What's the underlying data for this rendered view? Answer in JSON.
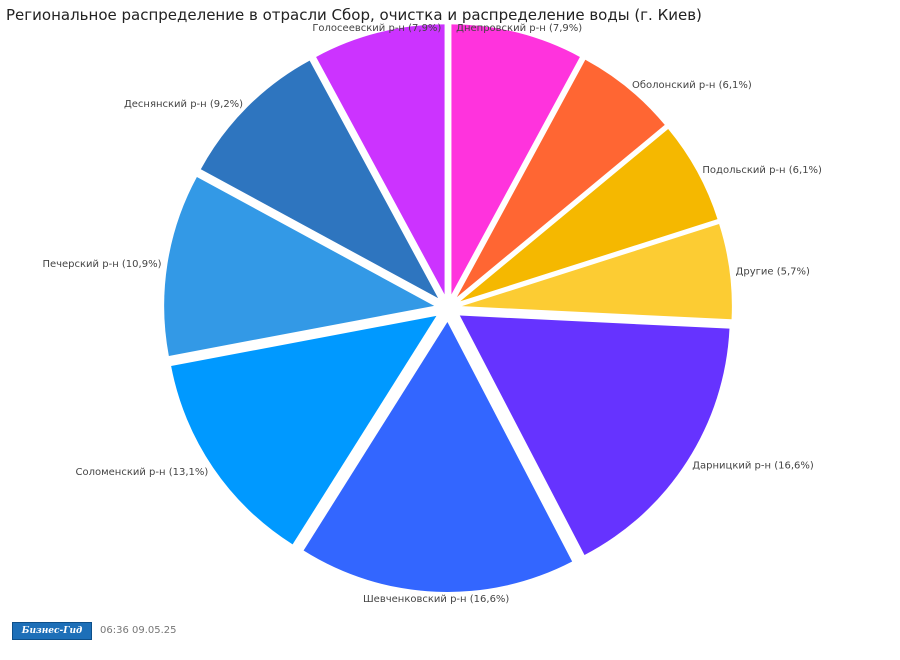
{
  "chart_data": {
    "type": "pie",
    "title": "Региональное распределение в отрасли Сбор, очистка и распределение воды (г. Киев)",
    "slices": [
      {
        "label": "Днепровский р-н (7,9%)",
        "value": 7.9,
        "color": "#ff33dd"
      },
      {
        "label": "Оболонский р-н (6,1%)",
        "value": 6.1,
        "color": "#ff6633"
      },
      {
        "label": "Подольский р-н (6,1%)",
        "value": 6.1,
        "color": "#f5b800"
      },
      {
        "label": "Другие (5,7%)",
        "value": 5.7,
        "color": "#fccc33"
      },
      {
        "label": "Дарницкий р-н (16,6%)",
        "value": 16.6,
        "color": "#6633ff"
      },
      {
        "label": "Шевченковский р-н (16,6%)",
        "value": 16.6,
        "color": "#3366ff"
      },
      {
        "label": "Соломенский р-н (13,1%)",
        "value": 13.1,
        "color": "#0099ff"
      },
      {
        "label": "Печерский р-н (10,9%)",
        "value": 10.9,
        "color": "#3399e6"
      },
      {
        "label": "Деснянский р-н (9,2%)",
        "value": 9.2,
        "color": "#2e75bf"
      },
      {
        "label": "Голосеевский р-н (7,9%)",
        "value": 7.9,
        "color": "#cc33ff"
      }
    ]
  },
  "footer": {
    "logo_text": "Бизнес-Гид",
    "timestamp": "06:36 09.05.25"
  }
}
